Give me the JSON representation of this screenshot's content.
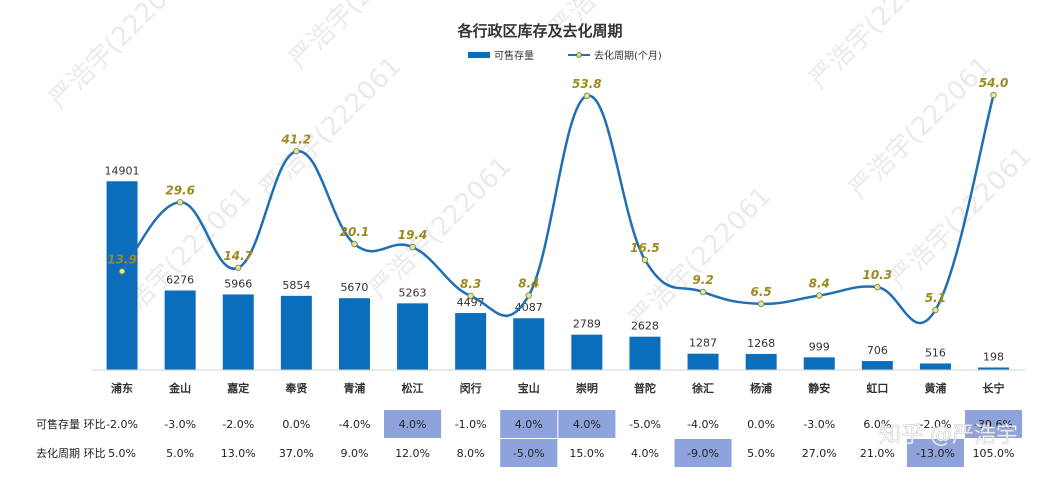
{
  "chart_data": {
    "type": "bar",
    "title": "各行政区库存及去化周期",
    "categories": [
      "浦东",
      "金山",
      "嘉定",
      "奉贤",
      "青浦",
      "松江",
      "闵行",
      "宝山",
      "崇明",
      "普陀",
      "徐汇",
      "杨浦",
      "静安",
      "虹口",
      "黄浦",
      "长宁"
    ],
    "series": [
      {
        "name": "可售存量",
        "type": "bar",
        "color": "#0a6ebd",
        "values": [
          14901,
          6276,
          5966,
          5854,
          5670,
          5263,
          4497,
          4087,
          2789,
          2628,
          1287,
          1268,
          999,
          706,
          516,
          198
        ]
      },
      {
        "name": "去化周期(个月)",
        "type": "line",
        "color": "#1f6fb4",
        "values": [
          13.9,
          29.6,
          14.7,
          41.2,
          20.1,
          19.4,
          8.3,
          8.4,
          53.8,
          16.5,
          9.2,
          6.5,
          8.4,
          10.3,
          5.1,
          54.0
        ],
        "labels": [
          "13.9",
          "29.6",
          "14.7",
          "41.2",
          "20.1",
          "19.4",
          "8.3",
          "8.4",
          "53.8",
          "16.5",
          "9.2",
          "6.5",
          "8.4",
          "10.3",
          "5.1",
          "54.0"
        ]
      }
    ],
    "legend_position": "top-center",
    "grid": false,
    "table": {
      "rows": [
        {
          "label": "可售存量 环比",
          "values": [
            "-2.0%",
            "-3.0%",
            "-2.0%",
            "0.0%",
            "-4.0%",
            "4.0%",
            "-1.0%",
            "4.0%",
            "4.0%",
            "-5.0%",
            "-4.0%",
            "0.0%",
            "-3.0%",
            "6.0%",
            "-2.0%",
            "-39.6%"
          ],
          "highlight": [
            false,
            false,
            false,
            false,
            false,
            true,
            false,
            true,
            true,
            false,
            false,
            false,
            false,
            false,
            false,
            true
          ]
        },
        {
          "label": "去化周期 环比",
          "values": [
            "5.0%",
            "5.0%",
            "13.0%",
            "37.0%",
            "9.0%",
            "12.0%",
            "8.0%",
            "-5.0%",
            "15.0%",
            "4.0%",
            "-9.0%",
            "5.0%",
            "27.0%",
            "21.0%",
            "-13.0%",
            "105.0%"
          ],
          "highlight": [
            false,
            false,
            false,
            false,
            false,
            false,
            false,
            true,
            false,
            false,
            true,
            false,
            false,
            false,
            true,
            false
          ]
        }
      ],
      "highlight_color": "#8ea3dc"
    }
  },
  "watermark_text": "严浩宇(222061",
  "brand_mark": "知乎 @严浩宇"
}
